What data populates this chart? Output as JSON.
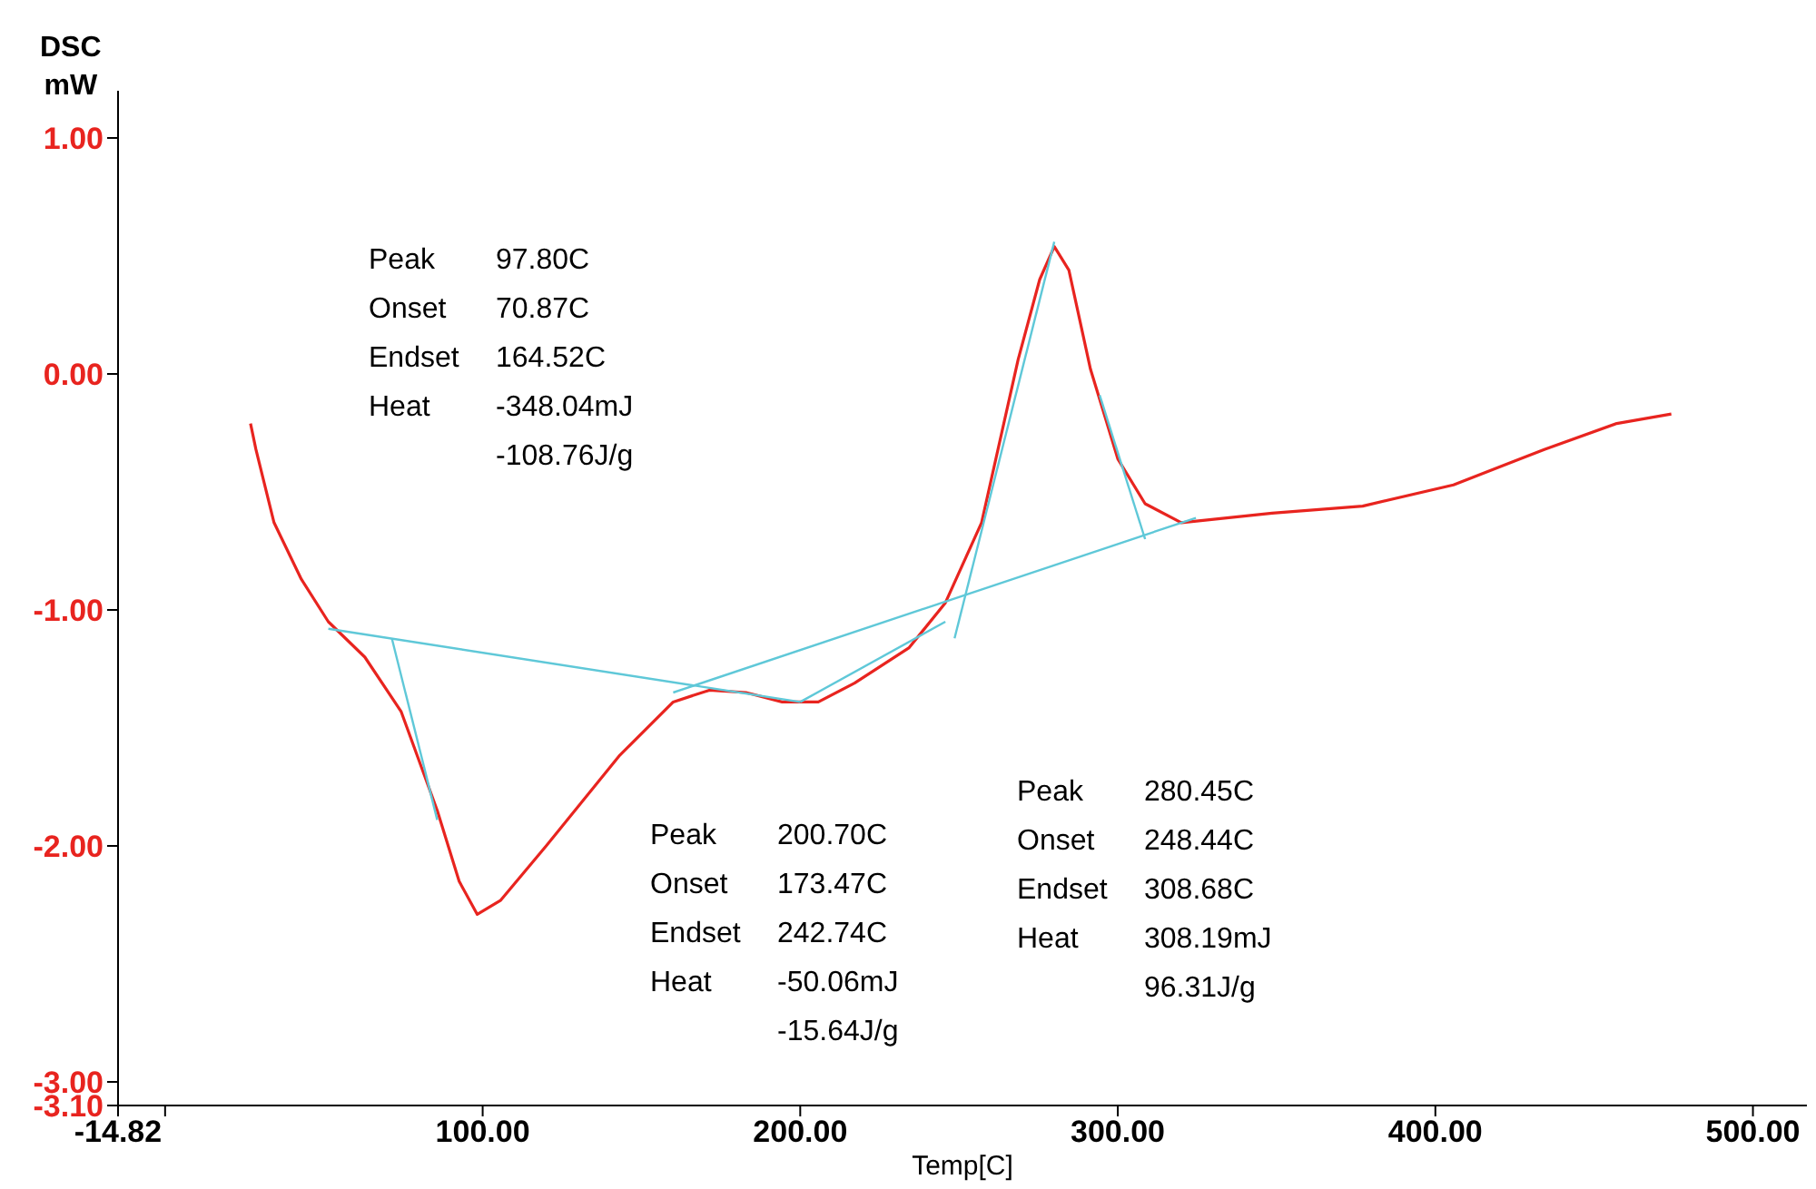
{
  "chart_data": {
    "type": "line",
    "ylabel": "DSC\nmW",
    "xlabel": "Temp[C]",
    "xlim": [
      -14.82,
      517
    ],
    "ylim": [
      -3.1,
      1.2
    ],
    "xticks": [
      {
        "value": -14.82,
        "label": "-14.82"
      },
      {
        "value": 0,
        "label": null
      },
      {
        "value": 100,
        "label": "100.00"
      },
      {
        "value": 200,
        "label": "200.00"
      },
      {
        "value": 300,
        "label": "300.00"
      },
      {
        "value": 400,
        "label": "400.00"
      },
      {
        "value": 500,
        "label": "500.00"
      }
    ],
    "yticks": [
      {
        "value": -3.1,
        "label": "-3.10"
      },
      {
        "value": -3,
        "label": "-3.00"
      },
      {
        "value": -2,
        "label": "-2.00"
      },
      {
        "value": -1,
        "label": "-1.00"
      },
      {
        "value": 0,
        "label": "0.00"
      },
      {
        "value": 1,
        "label": "1.00"
      }
    ],
    "grid": false,
    "marker": "none",
    "line_style": "solid",
    "series": [
      {
        "color": "#e8241f",
        "x": [
          26.9,
          28.6,
          34.3,
          42.9,
          51.4,
          62.9,
          74.3,
          85.7,
          92.6,
          98.3,
          105.7,
          120,
          142.9,
          160,
          171.4,
          182.9,
          194.3,
          205.7,
          217.1,
          234.3,
          245.7,
          257.1,
          268.6,
          275.4,
          280,
          284.6,
          291.4,
          300,
          308.6,
          320,
          348.6,
          377.1,
          405.7,
          434.3,
          457.1,
          474.3
        ],
        "values": [
          -0.21,
          -0.32,
          -0.63,
          -0.87,
          -1.05,
          -1.2,
          -1.43,
          -1.85,
          -2.15,
          -2.29,
          -2.23,
          -2.0,
          -1.62,
          -1.39,
          -1.34,
          -1.35,
          -1.39,
          -1.39,
          -1.31,
          -1.16,
          -0.97,
          -0.63,
          0.06,
          0.4,
          0.54,
          0.44,
          0.02,
          -0.36,
          -0.55,
          -0.63,
          -0.59,
          -0.56,
          -0.47,
          -0.32,
          -0.21,
          -0.17
        ]
      },
      {
        "color": "#5fc8d8",
        "x": [
          51.4,
          200
        ],
        "values": [
          -1.08,
          -1.39
        ]
      },
      {
        "color": "#5fc8d8",
        "x": [
          160,
          324.6
        ],
        "values": [
          -1.35,
          -0.61
        ]
      },
      {
        "color": "#5fc8d8",
        "x": [
          200,
          245.7
        ],
        "values": [
          -1.39,
          -1.05
        ]
      },
      {
        "color": "#5fc8d8",
        "x": [
          71.4,
          85.7
        ],
        "values": [
          -1.12,
          -1.89
        ]
      },
      {
        "color": "#5fc8d8",
        "x": [
          248.6,
          280
        ],
        "values": [
          -1.12,
          0.56
        ]
      },
      {
        "color": "#5fc8d8",
        "x": [
          294.3,
          308.6
        ],
        "values": [
          -0.09,
          -0.7
        ]
      }
    ],
    "annotations": [
      "Peak\t97.80C\nOnset\t70.87C\nEndset\t164.52C\nHeat\t-348.04mJ\n\t-108.76J/g",
      "Peak\t200.70C\nOnset\t173.47C\nEndset\t242.74C\nHeat\t-50.06mJ\n\t-15.64J/g",
      "Peak\t280.45C\nOnset\t248.44C\nEndset\t308.68C\nHeat\t308.19mJ\n\t96.31J/g"
    ]
  }
}
